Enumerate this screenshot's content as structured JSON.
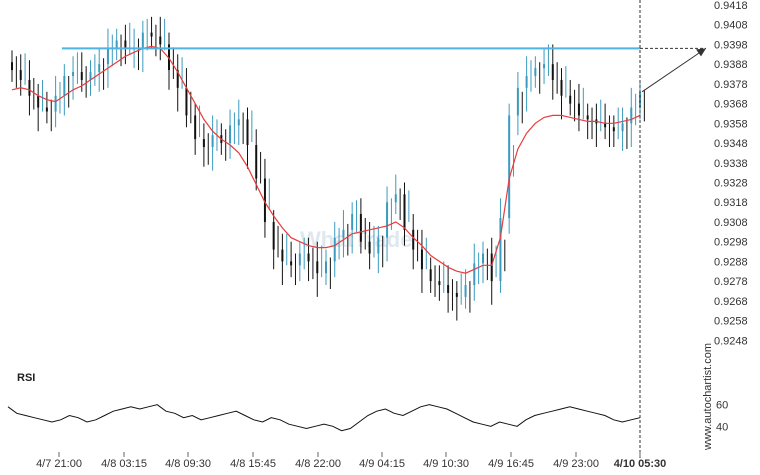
{
  "chart_data": {
    "type": "candlestick",
    "watermark": "WhatTrade",
    "vertical_label": "www.autochartist.com",
    "price_axis": {
      "ylim": [
        0.9238,
        0.9418
      ],
      "ticks": [
        "0.9418",
        "0.9408",
        "0.9398",
        "0.9388",
        "0.9378",
        "0.9368",
        "0.9358",
        "0.9348",
        "0.9338",
        "0.9328",
        "0.9318",
        "0.9308",
        "0.9298",
        "0.9288",
        "0.9278",
        "0.9268",
        "0.9258",
        "0.9248"
      ]
    },
    "x_ticks": [
      "4/7 21:00",
      "4/8 03:15",
      "4/8 09:30",
      "4/8 15:45",
      "4/8 22:00",
      "4/9 04:15",
      "4/9 10:30",
      "4/9 16:45",
      "4/9 23:00",
      "4/10 05:30"
    ],
    "resistance_level": 0.9396,
    "target_price": 0.9396,
    "close_series": [
      0.9385,
      0.938,
      0.9372,
      0.9366,
      0.9364,
      0.9372,
      0.9382,
      0.9384,
      0.938,
      0.9384,
      0.9388,
      0.9396,
      0.94,
      0.9396,
      0.9396,
      0.9404,
      0.9402,
      0.9398,
      0.9385,
      0.9376,
      0.9362,
      0.935,
      0.9346,
      0.9352,
      0.9348,
      0.9357,
      0.936,
      0.9347,
      0.933,
      0.9308,
      0.9294,
      0.9288,
      0.9286,
      0.9292,
      0.9288,
      0.9282,
      0.9288,
      0.93,
      0.9304,
      0.9312,
      0.9298,
      0.9292,
      0.93,
      0.9318,
      0.9322,
      0.9304,
      0.9294,
      0.9284,
      0.9278,
      0.9276,
      0.9272,
      0.927,
      0.9276,
      0.9287,
      0.9292,
      0.9278,
      0.931,
      0.9362,
      0.9376,
      0.9382,
      0.9386,
      0.9388,
      0.938,
      0.9372,
      0.9368,
      0.9362,
      0.936,
      0.9358,
      0.9356,
      0.9354,
      0.9358,
      0.9366,
      0.9374
    ],
    "ma_series": [
      0.9375,
      0.9376,
      0.9375,
      0.9372,
      0.937,
      0.9369,
      0.9372,
      0.9375,
      0.9377,
      0.938,
      0.9383,
      0.9386,
      0.9389,
      0.9392,
      0.9394,
      0.9396,
      0.9397,
      0.9396,
      0.9391,
      0.9384,
      0.9376,
      0.9368,
      0.936,
      0.9354,
      0.935,
      0.9347,
      0.9343,
      0.9336,
      0.9327,
      0.9318,
      0.9311,
      0.9305,
      0.93,
      0.9298,
      0.9296,
      0.9295,
      0.9295,
      0.9296,
      0.9299,
      0.9302,
      0.9303,
      0.9304,
      0.9305,
      0.9306,
      0.9308,
      0.9305,
      0.93,
      0.9296,
      0.9291,
      0.9288,
      0.9285,
      0.9283,
      0.9282,
      0.9284,
      0.9286,
      0.9286,
      0.93,
      0.933,
      0.9345,
      0.9353,
      0.9358,
      0.9361,
      0.9362,
      0.9362,
      0.9361,
      0.936,
      0.9359,
      0.9359,
      0.9358,
      0.9358,
      0.9359,
      0.936,
      0.9362
    ],
    "rsi": {
      "label": "RSI",
      "ylim": [
        20,
        80
      ],
      "ticks": [
        "60",
        "40"
      ],
      "values": [
        58,
        52,
        50,
        48,
        46,
        44,
        46,
        50,
        48,
        44,
        46,
        50,
        54,
        56,
        58,
        56,
        58,
        60,
        54,
        52,
        48,
        50,
        46,
        48,
        50,
        52,
        54,
        50,
        46,
        44,
        48,
        46,
        42,
        40,
        38,
        40,
        42,
        40,
        36,
        38,
        44,
        50,
        54,
        56,
        52,
        50,
        54,
        58,
        60,
        58,
        56,
        52,
        48,
        44,
        42,
        40,
        44,
        42,
        40,
        46,
        50,
        52,
        54,
        56,
        58,
        56,
        54,
        52,
        50,
        46,
        44,
        46,
        48
      ]
    },
    "colors": {
      "candles": "#3a9bbf",
      "candle_down": "#111111",
      "moving_average": "#e83c3c",
      "resistance": "#4fb3e6",
      "projection": "#333333",
      "rsi_line": "#111111"
    }
  }
}
